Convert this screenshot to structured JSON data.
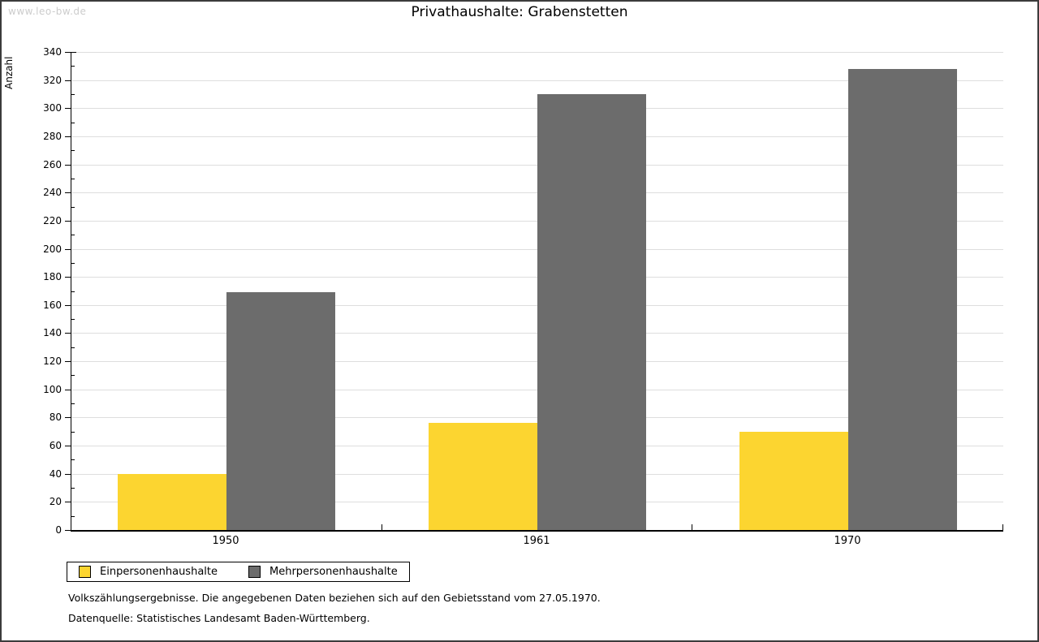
{
  "watermark": "www.leo-bw.de",
  "chart_data": {
    "type": "bar",
    "title": "Privathaushalte: Grabenstetten",
    "ylabel": "Anzahl",
    "xlabel": "",
    "categories": [
      "1950",
      "1961",
      "1970"
    ],
    "series": [
      {
        "name": "Einpersonenhaushalte",
        "color": "#FCD530",
        "values": [
          40,
          76,
          70
        ]
      },
      {
        "name": "Mehrpersonenhaushalte",
        "color": "#6C6C6C",
        "values": [
          169,
          310,
          328
        ]
      }
    ],
    "ylim": [
      0,
      340
    ],
    "ytick_step": 20,
    "yminor_step": 10,
    "grid": true,
    "gridline_color": "#DEDEDE",
    "legend_position": "bottom-left"
  },
  "footer": {
    "line1": "Volkszählungsergebnisse. Die angegebenen Daten beziehen sich auf den Gebietsstand vom 27.05.1970.",
    "line2": "Datenquelle: Statistisches Landesamt Baden-Württemberg."
  }
}
